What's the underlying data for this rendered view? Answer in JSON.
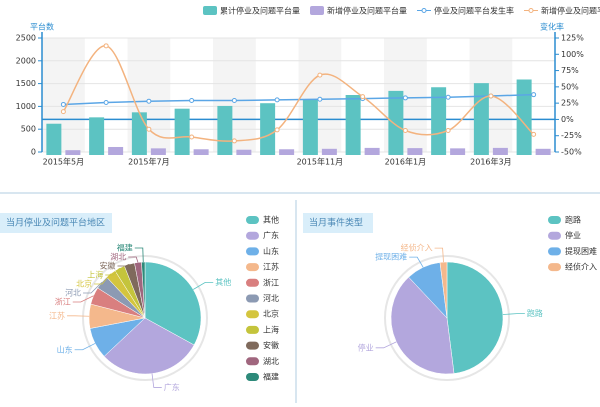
{
  "chart_data": [
    {
      "type": "combo",
      "y_axis_label": "平台数",
      "y2_axis_label": "变化率",
      "categories": [
        "2015年5月",
        null,
        "2015年7月",
        null,
        null,
        null,
        "2015年11月",
        null,
        "2016年1月",
        null,
        "2016年3月",
        null
      ],
      "series": [
        {
          "name": "累计停业及问题平台量",
          "type": "bar",
          "color": "#5cc3c2",
          "values": [
            620,
            760,
            870,
            950,
            1010,
            1070,
            1150,
            1250,
            1340,
            1420,
            1510,
            1590
          ]
        },
        {
          "name": "新增停业及问题平台量",
          "type": "bar",
          "color": "#b3a7dd",
          "values": [
            40,
            110,
            80,
            60,
            50,
            60,
            70,
            90,
            85,
            80,
            90,
            70
          ]
        },
        {
          "name": "停业及问题平台发生率",
          "type": "line",
          "axis": "y2",
          "color": "#5ba6e6",
          "values": [
            23,
            26,
            28,
            29,
            29,
            30,
            31,
            32,
            33,
            34,
            36,
            38
          ]
        },
        {
          "name": "新增停业及问题平台增长率",
          "type": "line",
          "axis": "y2",
          "color": "#f3b37f",
          "values": [
            12,
            113,
            -15,
            -27,
            -33,
            -16,
            68,
            35,
            -17,
            -17,
            36,
            -23
          ]
        }
      ],
      "ylim": [
        0,
        2500
      ],
      "yticks": [
        0,
        500,
        1000,
        1500,
        2000,
        2500
      ],
      "y2lim": [
        -50,
        125
      ],
      "y2ticks": [
        {
          "value": -50,
          "label": "-50%"
        },
        {
          "value": -25,
          "label": "-25%"
        },
        {
          "value": 0,
          "label": "0%"
        },
        {
          "value": 25,
          "label": "25%"
        },
        {
          "value": 50,
          "label": "50%"
        },
        {
          "value": 75,
          "label": "75%"
        },
        {
          "value": 100,
          "label": "100%"
        },
        {
          "value": 125,
          "label": "125%"
        }
      ],
      "grid": true,
      "legend": "top-right"
    },
    {
      "type": "pie",
      "title": "当月停业及问题平台地区",
      "categories": [
        "其他",
        "广东",
        "山东",
        "江苏",
        "浙江",
        "河北",
        "北京",
        "上海",
        "安徽",
        "湖北",
        "福建"
      ],
      "values": [
        33,
        30,
        9,
        7,
        5,
        4,
        3,
        3,
        3,
        2,
        1
      ],
      "colors": [
        "#5cc3c2",
        "#b3a7dd",
        "#6eb0e8",
        "#f4b88c",
        "#d97f7f",
        "#8c9ab3",
        "#d4c53e",
        "#c4c43c",
        "#7f6a5c",
        "#a0667e",
        "#2d8a7a"
      ],
      "legend": "right"
    },
    {
      "type": "pie",
      "title": "当月事件类型",
      "categories": [
        "跑路",
        "停业",
        "提现困难",
        "经侦介入"
      ],
      "values": [
        48,
        40,
        10,
        2
      ],
      "colors": [
        "#5cc3c2",
        "#b3a7dd",
        "#6eb0e8",
        "#f4b88c"
      ],
      "legend": "right"
    }
  ]
}
